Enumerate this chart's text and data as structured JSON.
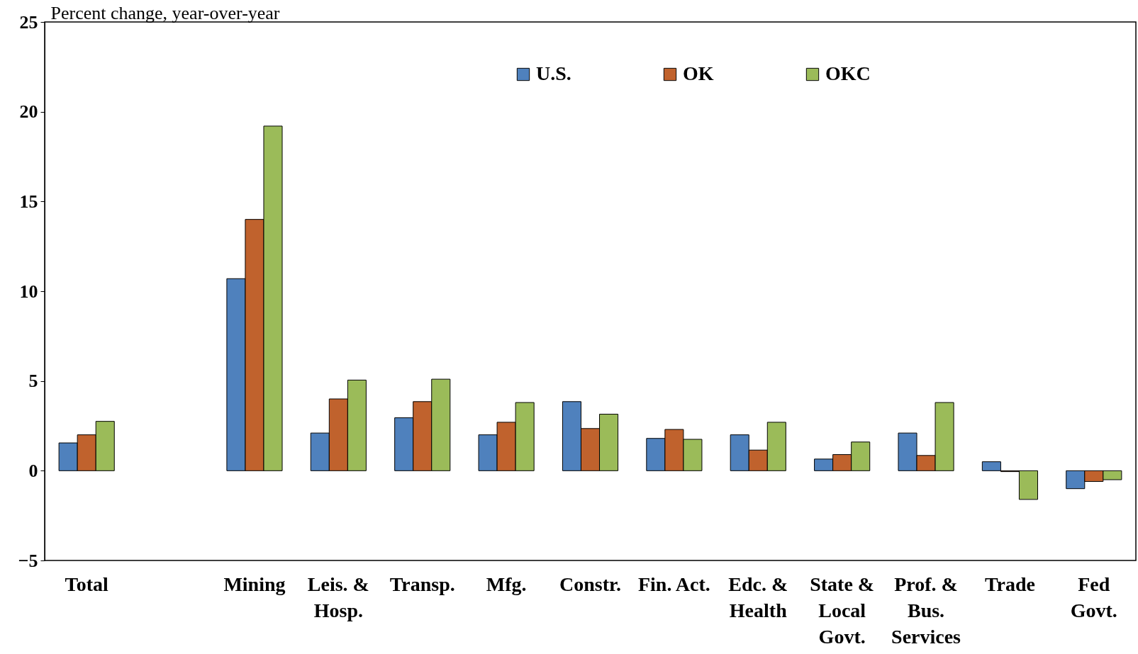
{
  "chart_data": {
    "type": "bar",
    "ylabel": "Percent change, year-over-year",
    "categories": [
      "Total",
      null,
      "Mining",
      "Leis. &\nHosp.",
      "Transp.",
      "Mfg.",
      "Constr.",
      "Fin. Act.",
      "Edc. &\nHealth",
      "State &\nLocal\nGovt.",
      "Prof. &\nBus.\nServices",
      "Trade",
      "Fed\nGovt."
    ],
    "series": [
      {
        "name": "U.S.",
        "color": "#4f81bd",
        "values": [
          1.55,
          null,
          10.7,
          2.1,
          2.95,
          2.0,
          3.85,
          1.8,
          2.0,
          0.65,
          2.1,
          0.5,
          -1.0
        ]
      },
      {
        "name": "OK",
        "color": "#c0622d",
        "values": [
          2.0,
          null,
          14.0,
          4.0,
          3.85,
          2.7,
          2.35,
          2.3,
          1.15,
          0.9,
          0.85,
          -0.05,
          -0.6
        ]
      },
      {
        "name": "OKC",
        "color": "#9bbb59",
        "values": [
          2.75,
          null,
          19.2,
          5.05,
          5.1,
          3.8,
          3.15,
          1.75,
          2.7,
          1.6,
          3.8,
          -1.6,
          -0.5
        ]
      }
    ],
    "ylim": [
      -5,
      25
    ],
    "yticks": [
      -5,
      0,
      5,
      10,
      15,
      20,
      25
    ],
    "grid": false,
    "legend": "top"
  }
}
